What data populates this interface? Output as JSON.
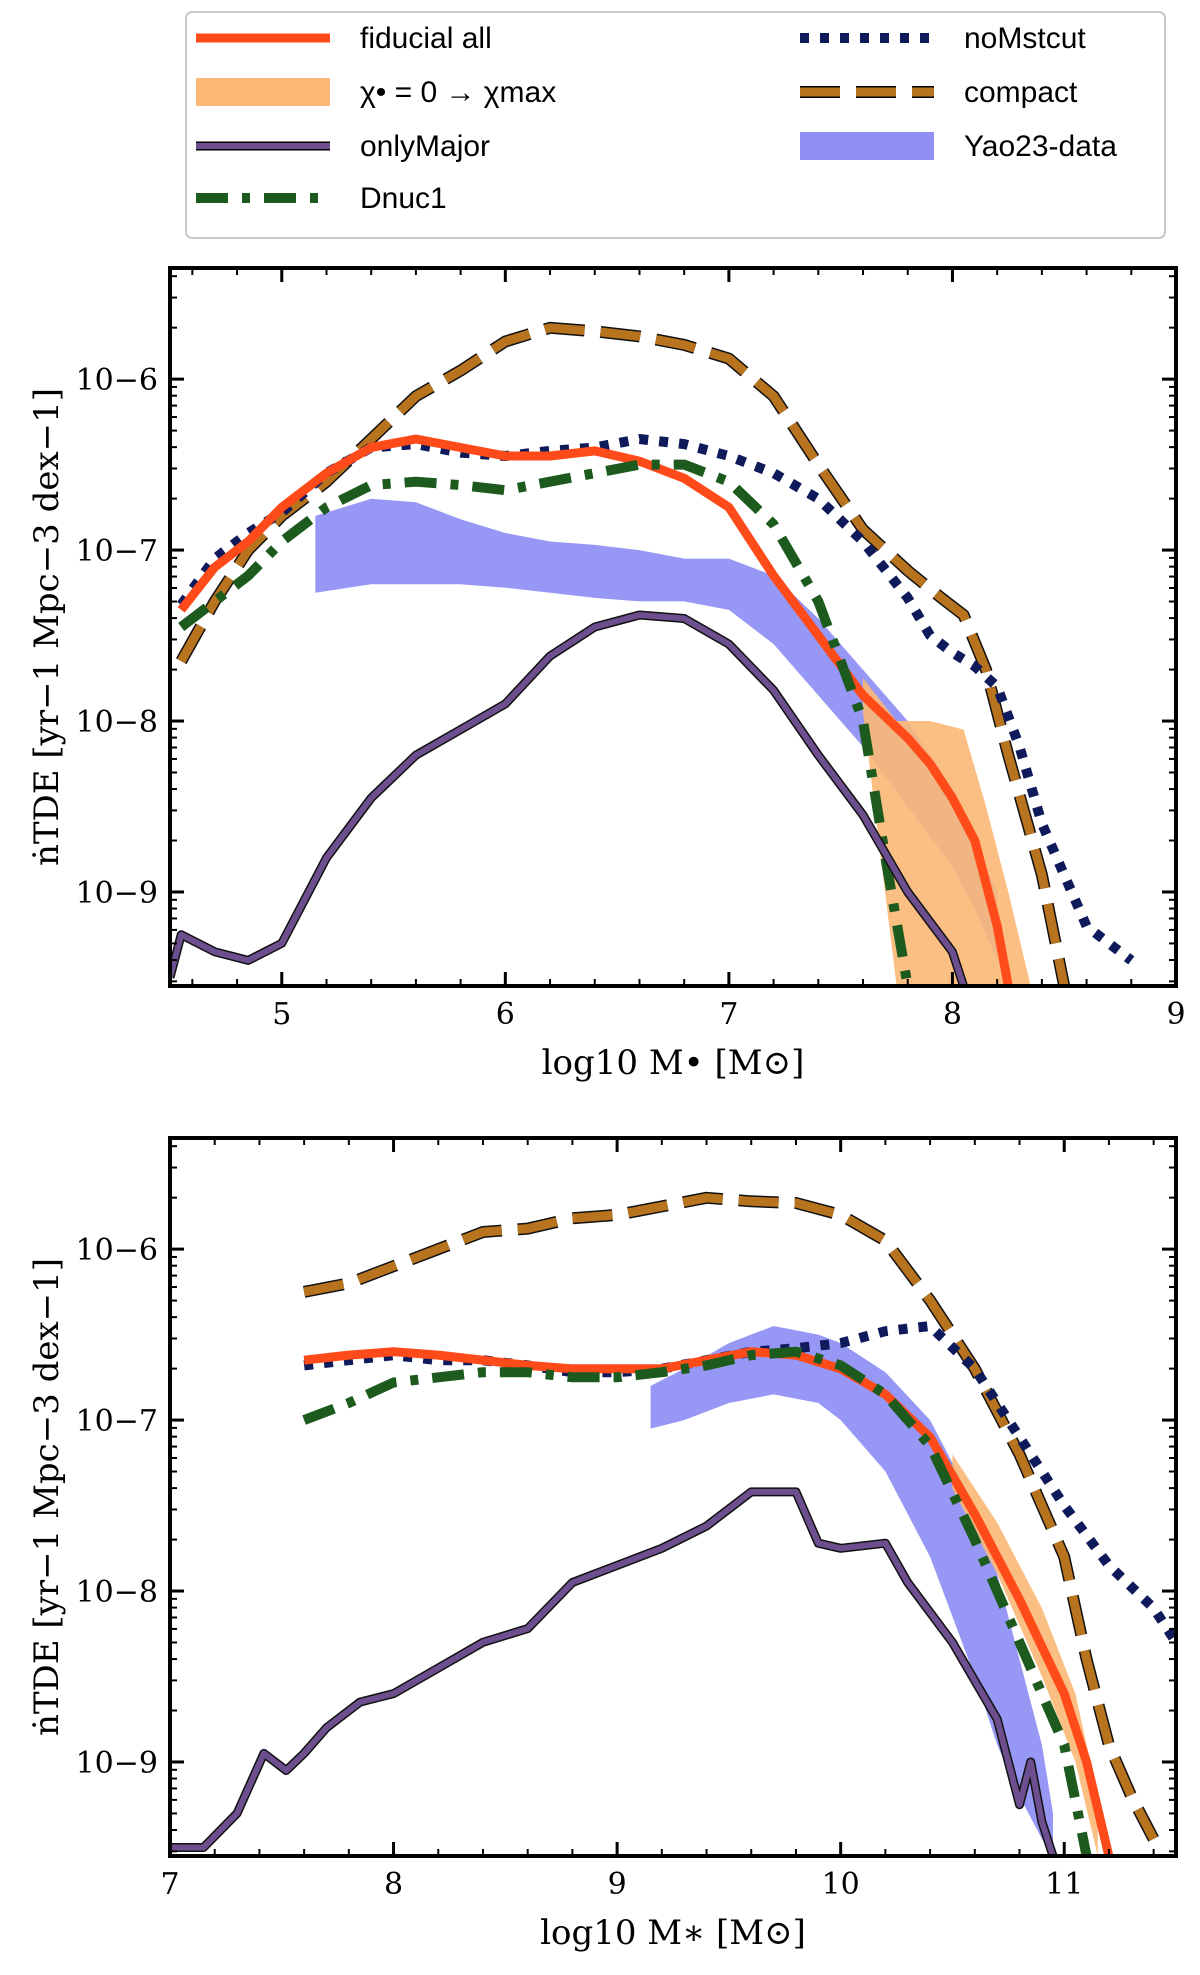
{
  "legend": {
    "entries": [
      {
        "key": "fiducial",
        "label": "fiducial all"
      },
      {
        "key": "chi_band",
        "label": "χ• = 0 → χmax"
      },
      {
        "key": "onlyMajor",
        "label": "onlyMajor"
      },
      {
        "key": "Dnuc1",
        "label": "Dnuc1"
      },
      {
        "key": "noMstcut",
        "label": "noMstcut"
      },
      {
        "key": "compact",
        "label": "compact"
      },
      {
        "key": "yao",
        "label": "Yao23-data"
      }
    ]
  },
  "colors": {
    "fiducial": "#ff4a1a",
    "chi_band": "#fbb877",
    "onlyMajor": "#6d4f8f",
    "Dnuc1": "#1d5a1d",
    "noMstcut": "#0f1a5a",
    "compact": "#b8731e",
    "yao": "#7d7df2"
  },
  "chart_data": [
    {
      "type": "line",
      "panel": "top",
      "xlabel": "log10 M• [M⊙]",
      "ylabel": "ṅTDE [yr−1 Mpc−3 dex−1]",
      "xlim": [
        4.5,
        9.0
      ],
      "ylim_log10": [
        -9.55,
        -5.35
      ],
      "x_ticks": [
        5,
        6,
        7,
        8,
        9
      ],
      "x_tick_labels": [
        "5",
        "6",
        "7",
        "8",
        "9"
      ],
      "y_ticks_log10": [
        -9,
        -8,
        -7,
        -6
      ],
      "y_tick_labels": [
        "10−9",
        "10−8",
        "10−7",
        "10−6"
      ],
      "series": [
        {
          "key": "compact",
          "name": "compact",
          "x": [
            4.55,
            4.7,
            4.85,
            5.0,
            5.2,
            5.4,
            5.6,
            5.8,
            6.0,
            6.2,
            6.4,
            6.6,
            6.8,
            7.0,
            7.2,
            7.4,
            7.6,
            7.8,
            7.95,
            8.05,
            8.15,
            8.25,
            8.4,
            8.5
          ],
          "y_log10": [
            -7.65,
            -7.3,
            -7.0,
            -6.8,
            -6.6,
            -6.35,
            -6.1,
            -5.95,
            -5.78,
            -5.7,
            -5.72,
            -5.75,
            -5.8,
            -5.88,
            -6.1,
            -6.5,
            -6.88,
            -7.12,
            -7.28,
            -7.38,
            -7.7,
            -8.2,
            -8.9,
            -9.55
          ]
        },
        {
          "key": "noMstcut",
          "name": "noMstcut",
          "x": [
            4.55,
            4.7,
            4.85,
            5.0,
            5.2,
            5.4,
            5.6,
            5.8,
            6.0,
            6.2,
            6.4,
            6.6,
            6.8,
            7.0,
            7.2,
            7.4,
            7.6,
            7.8,
            7.9,
            8.0,
            8.1,
            8.2,
            8.3,
            8.4,
            8.5,
            8.6,
            8.7,
            8.8
          ],
          "y_log10": [
            -7.32,
            -7.05,
            -6.9,
            -6.78,
            -6.55,
            -6.4,
            -6.38,
            -6.43,
            -6.45,
            -6.42,
            -6.4,
            -6.35,
            -6.38,
            -6.45,
            -6.55,
            -6.7,
            -6.95,
            -7.28,
            -7.5,
            -7.6,
            -7.68,
            -7.8,
            -8.15,
            -8.6,
            -8.9,
            -9.2,
            -9.3,
            -9.4
          ]
        },
        {
          "key": "fiducial",
          "name": "fiducial all",
          "x": [
            4.55,
            4.7,
            4.85,
            5.0,
            5.2,
            5.4,
            5.6,
            5.8,
            6.0,
            6.2,
            6.4,
            6.6,
            6.8,
            7.0,
            7.2,
            7.4,
            7.6,
            7.8,
            7.9,
            8.0,
            8.1,
            8.2,
            8.25
          ],
          "y_log10": [
            -7.35,
            -7.1,
            -6.95,
            -6.75,
            -6.55,
            -6.4,
            -6.35,
            -6.4,
            -6.45,
            -6.45,
            -6.42,
            -6.48,
            -6.58,
            -6.75,
            -7.15,
            -7.5,
            -7.85,
            -8.1,
            -8.25,
            -8.45,
            -8.7,
            -9.2,
            -9.55
          ]
        },
        {
          "key": "Dnuc1",
          "name": "Dnuc1",
          "x": [
            4.55,
            4.7,
            4.85,
            5.0,
            5.2,
            5.4,
            5.6,
            5.8,
            6.0,
            6.2,
            6.4,
            6.6,
            6.8,
            7.0,
            7.2,
            7.4,
            7.6,
            7.7,
            7.8
          ],
          "y_log10": [
            -7.45,
            -7.3,
            -7.15,
            -6.95,
            -6.75,
            -6.62,
            -6.6,
            -6.62,
            -6.65,
            -6.6,
            -6.55,
            -6.5,
            -6.5,
            -6.6,
            -6.85,
            -7.3,
            -8.0,
            -8.8,
            -9.55
          ]
        },
        {
          "key": "onlyMajor",
          "name": "onlyMajor",
          "x": [
            4.5,
            4.55,
            4.7,
            4.85,
            5.0,
            5.2,
            5.4,
            5.6,
            5.8,
            6.0,
            6.2,
            6.4,
            6.6,
            6.8,
            7.0,
            7.2,
            7.4,
            7.6,
            7.8,
            8.0,
            8.05
          ],
          "y_log10": [
            -9.5,
            -9.25,
            -9.35,
            -9.4,
            -9.3,
            -8.8,
            -8.45,
            -8.2,
            -8.05,
            -7.9,
            -7.62,
            -7.45,
            -7.38,
            -7.4,
            -7.55,
            -7.82,
            -8.2,
            -8.55,
            -9.0,
            -9.35,
            -9.55
          ]
        }
      ],
      "bands": [
        {
          "key": "yao",
          "name": "Yao23-data",
          "x": [
            5.15,
            5.4,
            5.6,
            5.8,
            6.0,
            6.2,
            6.4,
            6.6,
            6.8,
            7.0,
            7.2,
            7.4,
            7.6,
            7.8,
            8.0,
            8.1,
            8.2
          ],
          "lower_log10": [
            -7.25,
            -7.2,
            -7.2,
            -7.2,
            -7.22,
            -7.25,
            -7.28,
            -7.3,
            -7.3,
            -7.35,
            -7.55,
            -7.85,
            -8.15,
            -8.5,
            -8.85,
            -9.1,
            -9.4
          ],
          "upper_log10": [
            -6.8,
            -6.7,
            -6.72,
            -6.82,
            -6.9,
            -6.95,
            -6.97,
            -7.0,
            -7.05,
            -7.05,
            -7.15,
            -7.4,
            -7.7,
            -8.0,
            -8.4,
            -8.7,
            -9.0
          ]
        },
        {
          "key": "chi_band",
          "name": "χ• = 0 → χmax",
          "x": [
            7.6,
            7.75,
            7.9,
            8.05,
            8.15,
            8.25,
            8.35
          ],
          "lower_log10": [
            -7.95,
            -9.55,
            -9.55,
            -9.55,
            -9.55,
            -9.55,
            -9.55
          ],
          "upper_log10": [
            -7.75,
            -8.0,
            -8.0,
            -8.05,
            -8.5,
            -9.0,
            -9.55
          ]
        }
      ]
    },
    {
      "type": "line",
      "panel": "bottom",
      "xlabel": "log10 M∗ [M⊙]",
      "ylabel": "ṅTDE [yr−1 Mpc−3 dex−1]",
      "xlim": [
        7.0,
        11.5
      ],
      "ylim_log10": [
        -9.55,
        -5.35
      ],
      "x_ticks": [
        7,
        8,
        9,
        10,
        11
      ],
      "x_tick_labels": [
        "7",
        "8",
        "9",
        "10",
        "11"
      ],
      "y_ticks_log10": [
        -9,
        -8,
        -7,
        -6
      ],
      "y_tick_labels": [
        "10−9",
        "10−8",
        "10−7",
        "10−6"
      ],
      "series": [
        {
          "key": "compact",
          "name": "compact",
          "x": [
            7.6,
            7.8,
            8.0,
            8.2,
            8.4,
            8.6,
            8.8,
            9.0,
            9.2,
            9.4,
            9.6,
            9.8,
            10.0,
            10.2,
            10.4,
            10.6,
            10.8,
            11.0,
            11.1,
            11.2,
            11.3,
            11.4
          ],
          "y_log10": [
            -6.25,
            -6.2,
            -6.1,
            -6.0,
            -5.9,
            -5.88,
            -5.82,
            -5.8,
            -5.75,
            -5.7,
            -5.72,
            -5.73,
            -5.8,
            -5.95,
            -6.3,
            -6.7,
            -7.2,
            -7.8,
            -8.4,
            -8.9,
            -9.2,
            -9.45
          ]
        },
        {
          "key": "noMstcut",
          "name": "noMstcut",
          "x": [
            7.6,
            7.8,
            8.0,
            8.2,
            8.4,
            8.6,
            8.8,
            9.0,
            9.2,
            9.4,
            9.6,
            9.8,
            10.0,
            10.2,
            10.4,
            10.6,
            10.8,
            11.0,
            11.2,
            11.4,
            11.5
          ],
          "y_log10": [
            -6.68,
            -6.65,
            -6.62,
            -6.65,
            -6.65,
            -6.68,
            -6.72,
            -6.72,
            -6.7,
            -6.65,
            -6.6,
            -6.58,
            -6.55,
            -6.48,
            -6.45,
            -6.7,
            -7.1,
            -7.5,
            -7.85,
            -8.1,
            -8.3
          ]
        },
        {
          "key": "fiducial",
          "name": "fiducial all",
          "x": [
            7.6,
            7.8,
            8.0,
            8.2,
            8.4,
            8.6,
            8.8,
            9.0,
            9.2,
            9.4,
            9.6,
            9.8,
            10.0,
            10.2,
            10.4,
            10.6,
            10.8,
            11.0,
            11.1,
            11.2
          ],
          "y_log10": [
            -6.65,
            -6.62,
            -6.6,
            -6.62,
            -6.65,
            -6.68,
            -6.7,
            -6.7,
            -6.7,
            -6.65,
            -6.6,
            -6.62,
            -6.7,
            -6.85,
            -7.1,
            -7.55,
            -8.05,
            -8.6,
            -9.0,
            -9.55
          ]
        },
        {
          "key": "Dnuc1",
          "name": "Dnuc1",
          "x": [
            7.6,
            7.8,
            8.0,
            8.2,
            8.4,
            8.6,
            8.8,
            9.0,
            9.2,
            9.4,
            9.6,
            9.8,
            10.0,
            10.2,
            10.4,
            10.6,
            10.8,
            11.0,
            11.1
          ],
          "y_log10": [
            -7.0,
            -6.9,
            -6.78,
            -6.75,
            -6.72,
            -6.72,
            -6.75,
            -6.75,
            -6.72,
            -6.68,
            -6.62,
            -6.6,
            -6.68,
            -6.85,
            -7.15,
            -7.7,
            -8.3,
            -8.9,
            -9.55
          ]
        },
        {
          "key": "onlyMajor",
          "name": "onlyMajor",
          "x": [
            7.0,
            7.15,
            7.3,
            7.42,
            7.52,
            7.6,
            7.7,
            7.85,
            8.0,
            8.2,
            8.4,
            8.6,
            8.8,
            9.0,
            9.2,
            9.4,
            9.6,
            9.8,
            9.9,
            10.0,
            10.2,
            10.3,
            10.5,
            10.7,
            10.8,
            10.85,
            10.9,
            10.95
          ],
          "y_log10": [
            -9.5,
            -9.5,
            -9.3,
            -8.95,
            -9.05,
            -8.95,
            -8.8,
            -8.65,
            -8.6,
            -8.45,
            -8.3,
            -8.22,
            -7.95,
            -7.85,
            -7.75,
            -7.62,
            -7.42,
            -7.42,
            -7.72,
            -7.75,
            -7.72,
            -7.95,
            -8.3,
            -8.75,
            -9.25,
            -9.0,
            -9.35,
            -9.55
          ]
        }
      ],
      "bands": [
        {
          "key": "yao",
          "name": "Yao23-data",
          "x": [
            9.15,
            9.3,
            9.5,
            9.7,
            9.9,
            10.0,
            10.2,
            10.4,
            10.6,
            10.7,
            10.8,
            10.9,
            10.95
          ],
          "lower_log10": [
            -7.05,
            -7.0,
            -6.9,
            -6.85,
            -6.9,
            -7.0,
            -7.3,
            -7.8,
            -8.5,
            -8.9,
            -9.2,
            -9.45,
            -9.55
          ],
          "upper_log10": [
            -6.8,
            -6.7,
            -6.55,
            -6.45,
            -6.5,
            -6.55,
            -6.72,
            -7.0,
            -7.5,
            -7.9,
            -8.4,
            -8.9,
            -9.3
          ]
        },
        {
          "key": "chi_band",
          "name": "χ• = 0 → χmax",
          "x": [
            10.5,
            10.7,
            10.9,
            11.05,
            11.15
          ],
          "lower_log10": [
            -7.4,
            -7.9,
            -8.5,
            -9.0,
            -9.55
          ],
          "upper_log10": [
            -7.2,
            -7.6,
            -8.1,
            -8.6,
            -9.2
          ]
        }
      ]
    }
  ]
}
